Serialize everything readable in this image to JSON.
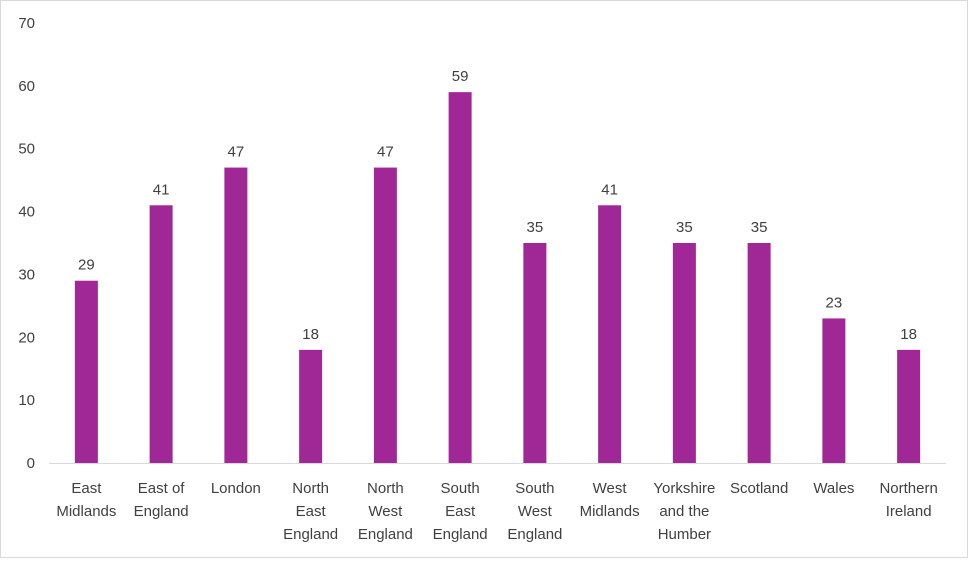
{
  "colors": {
    "bar": "#a02896",
    "axis": "#d9d9d9",
    "text": "#404040"
  },
  "chart_data": {
    "type": "bar",
    "title": "",
    "xlabel": "",
    "ylabel": "",
    "categories": [
      [
        "East",
        "Midlands"
      ],
      [
        "East of",
        "England"
      ],
      [
        "London"
      ],
      [
        "North",
        "East",
        "England"
      ],
      [
        "North",
        "West",
        "England"
      ],
      [
        "South",
        "East",
        "England"
      ],
      [
        "South",
        "West",
        "England"
      ],
      [
        "West",
        "Midlands"
      ],
      [
        "Yorkshire",
        "and the",
        "Humber"
      ],
      [
        "Scotland"
      ],
      [
        "Wales"
      ],
      [
        "Northern",
        "Ireland"
      ]
    ],
    "values": [
      29,
      41,
      47,
      18,
      47,
      59,
      35,
      41,
      35,
      35,
      23,
      18
    ],
    "ylim": [
      0,
      70
    ],
    "yticks": [
      0,
      10,
      20,
      30,
      40,
      50,
      60,
      70
    ],
    "grid": false,
    "legend": "none",
    "data_labels": true
  }
}
